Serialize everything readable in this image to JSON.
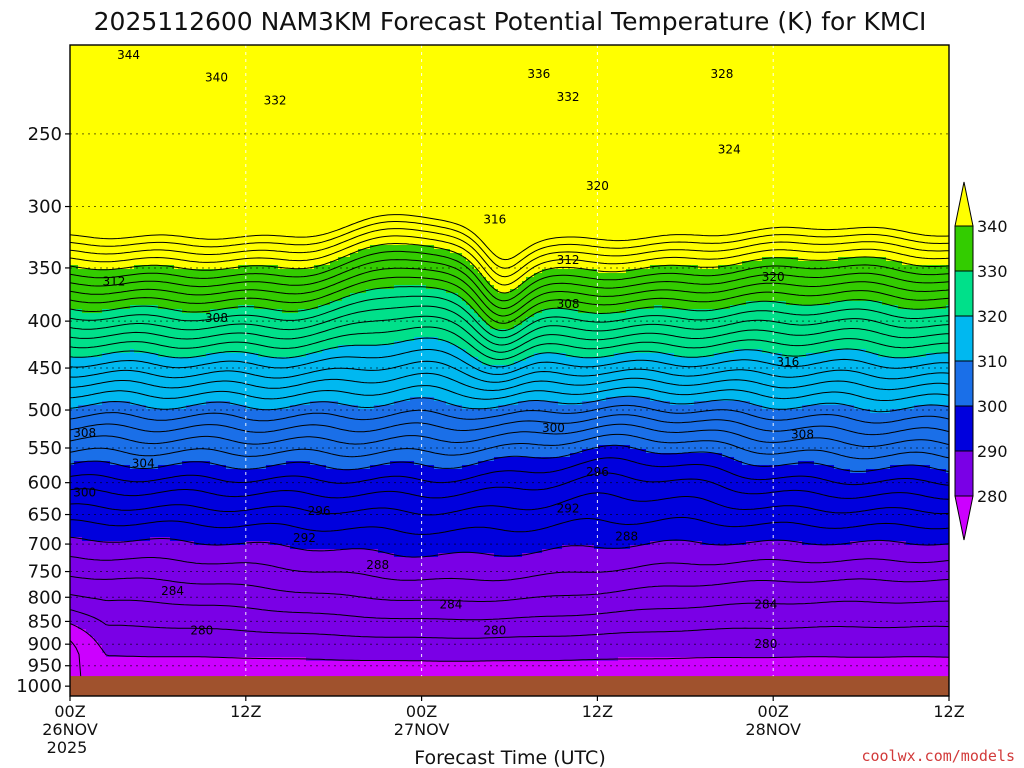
{
  "chart_data": {
    "type": "contour",
    "title": "2025112600 NAM3KM Forecast Potential Temperature (K) for KMCI",
    "xlabel": "Forecast Time (UTC)",
    "x_ticks": [
      {
        "hour": 0,
        "line1": "00Z",
        "line2": "26NOV",
        "line3": "2025"
      },
      {
        "hour": 12,
        "line1": "12Z",
        "line2": "",
        "line3": ""
      },
      {
        "hour": 24,
        "line1": "00Z",
        "line2": "27NOV",
        "line3": ""
      },
      {
        "hour": 36,
        "line1": "12Z",
        "line2": "",
        "line3": ""
      },
      {
        "hour": 48,
        "line1": "00Z",
        "line2": "28NOV",
        "line3": ""
      },
      {
        "hour": 60,
        "line1": "12Z",
        "line2": "",
        "line3": ""
      }
    ],
    "xlim": [
      0,
      60
    ],
    "y_ticks": [
      250,
      300,
      350,
      400,
      450,
      500,
      550,
      600,
      650,
      700,
      750,
      800,
      850,
      900,
      950,
      1000
    ],
    "ylim": [
      1025,
      200
    ],
    "y_scale": "log",
    "grid": true,
    "colorbar": {
      "labels": [
        340,
        330,
        320,
        310,
        300,
        290,
        280
      ],
      "colors": [
        "#ffff00",
        "#33cc00",
        "#00e08a",
        "#00b8f0",
        "#1a6fe8",
        "#0000dd",
        "#7a00e6",
        "#cc00ff"
      ]
    },
    "contour_interval": 2,
    "contour_labels": [
      {
        "v": "344",
        "h": 4.0,
        "p": 205
      },
      {
        "v": "340",
        "h": 10.0,
        "p": 217
      },
      {
        "v": "332",
        "h": 14.0,
        "p": 230
      },
      {
        "v": "336",
        "h": 32.0,
        "p": 215
      },
      {
        "v": "332",
        "h": 34.0,
        "p": 228
      },
      {
        "v": "328",
        "h": 44.5,
        "p": 215
      },
      {
        "v": "324",
        "h": 45.0,
        "p": 260
      },
      {
        "v": "320",
        "h": 36.0,
        "p": 285
      },
      {
        "v": "316",
        "h": 29.0,
        "p": 310
      },
      {
        "v": "312",
        "h": 34.0,
        "p": 343
      },
      {
        "v": "320",
        "h": 48.0,
        "p": 358
      },
      {
        "v": "312",
        "h": 3.0,
        "p": 362
      },
      {
        "v": "308",
        "h": 10.0,
        "p": 397
      },
      {
        "v": "308",
        "h": 34.0,
        "p": 383
      },
      {
        "v": "316",
        "h": 49.0,
        "p": 443
      },
      {
        "v": "308",
        "h": 1.0,
        "p": 530
      },
      {
        "v": "304",
        "h": 5.0,
        "p": 572
      },
      {
        "v": "300",
        "h": 33.0,
        "p": 523
      },
      {
        "v": "308",
        "h": 50.0,
        "p": 532
      },
      {
        "v": "300",
        "h": 1.0,
        "p": 615
      },
      {
        "v": "296",
        "h": 36.0,
        "p": 584
      },
      {
        "v": "296",
        "h": 17.0,
        "p": 644
      },
      {
        "v": "292",
        "h": 34.0,
        "p": 640
      },
      {
        "v": "292",
        "h": 16.0,
        "p": 689
      },
      {
        "v": "288",
        "h": 38.0,
        "p": 687
      },
      {
        "v": "288",
        "h": 21.0,
        "p": 738
      },
      {
        "v": "284",
        "h": 7.0,
        "p": 788
      },
      {
        "v": "284",
        "h": 26.0,
        "p": 815
      },
      {
        "v": "284",
        "h": 47.5,
        "p": 815
      },
      {
        "v": "280",
        "h": 9.0,
        "p": 870
      },
      {
        "v": "280",
        "h": 29.0,
        "p": 870
      },
      {
        "v": "280",
        "h": 47.5,
        "p": 900
      }
    ],
    "ground": {
      "p_top": 975,
      "color": "#a0522d"
    }
  },
  "credit": "coolwx.com/models"
}
